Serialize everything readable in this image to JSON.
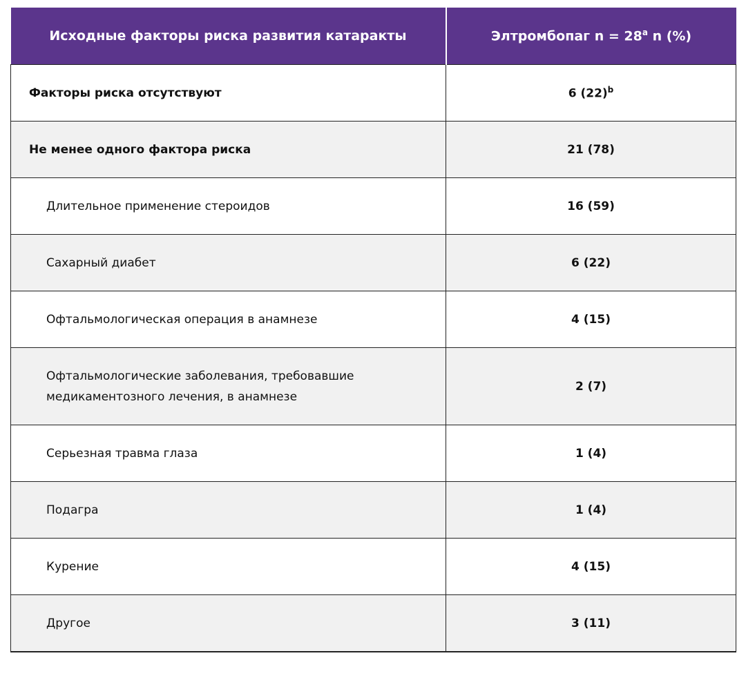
{
  "header": {
    "col1": "Исходные факторы риска развития катаракты",
    "col2": "Элтромбопаг n = 28",
    "col2_sup": "a",
    "col2_suffix": " n (%)"
  },
  "rows": [
    {
      "label": "Факторы риска отсутствуют",
      "value": "6 (22)",
      "sup": "b"
    },
    {
      "label": "Не менее одного фактора риска",
      "value": "21 (78)"
    },
    {
      "label": "Длительное применение стероидов",
      "value": "16 (59)"
    },
    {
      "label": "Сахарный диабет",
      "value": "6 (22)"
    },
    {
      "label": "Офтальмологическая операция в анамнезе",
      "value": "4 (15)"
    },
    {
      "label": "Офтальмологические заболевания, требовавшие медикаментозного лечения, в анамнезе",
      "value": "2 (7)"
    },
    {
      "label": "Серьезная травма глаза",
      "value": "1 (4)"
    },
    {
      "label": "Подагра",
      "value": "1 (4)"
    },
    {
      "label": "Курение",
      "value": "4 (15)"
    },
    {
      "label": "Другое",
      "value": "3 (11)"
    }
  ],
  "colors": {
    "header_bg": "#5b358c",
    "alt_row": "#f1f1f1"
  }
}
